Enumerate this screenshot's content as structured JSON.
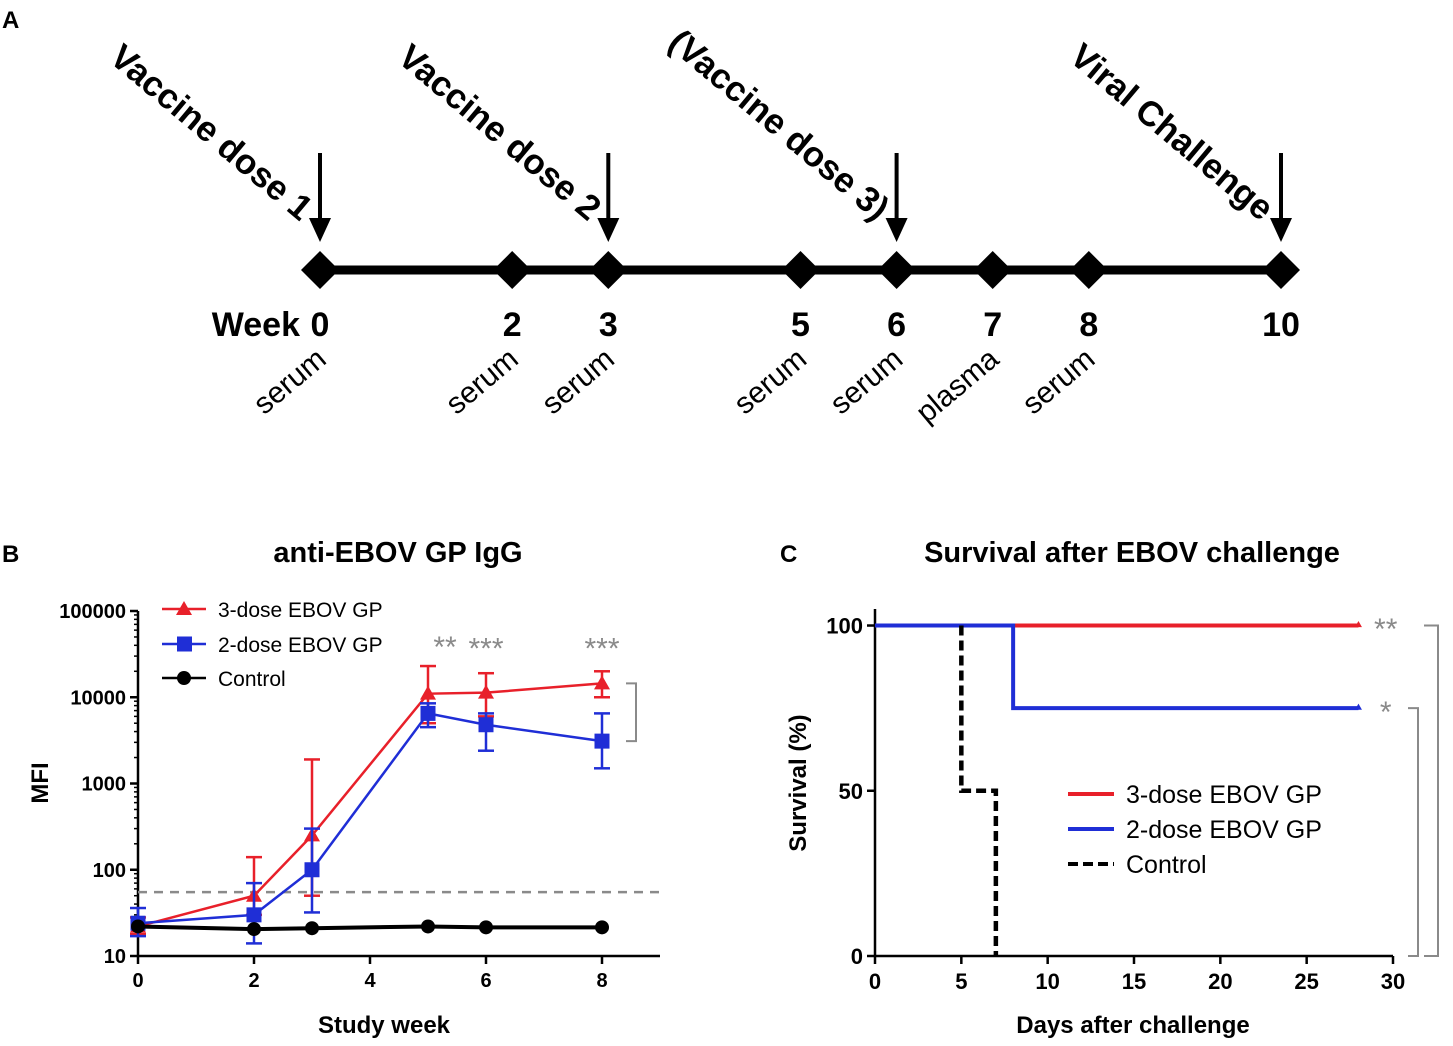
{
  "panels": {
    "a": "A",
    "b": "B",
    "c": "C"
  },
  "timeline": {
    "week_label": "Week",
    "weeks": [
      "0",
      "2",
      "3",
      "5",
      "6",
      "7",
      "8",
      "10"
    ],
    "week_values": [
      0,
      2,
      3,
      5,
      6,
      7,
      8,
      10
    ],
    "samples": [
      "serum",
      "serum",
      "serum",
      "serum",
      "serum",
      "plasma",
      "serum"
    ],
    "events": [
      {
        "label": "Vaccine dose 1",
        "week": 0
      },
      {
        "label": "Vaccine dose 2",
        "week": 3
      },
      {
        "label": "(Vaccine dose 3)",
        "week": 6
      },
      {
        "label": "Viral Challenge",
        "week": 10
      }
    ]
  },
  "chart_data": [
    {
      "type": "line",
      "title": "anti-EBOV GP IgG",
      "xlabel": "Study week",
      "ylabel": "MFI",
      "yscale": "log",
      "xlim": [
        0,
        9
      ],
      "ylim": [
        10,
        100000
      ],
      "xticks": [
        0,
        2,
        4,
        6,
        8
      ],
      "xtick_labels": [
        "0",
        "2",
        "4",
        "6",
        "8"
      ],
      "yticks": [
        10,
        100,
        1000,
        10000,
        100000
      ],
      "ytick_labels": [
        "10",
        "100",
        "1000",
        "10000",
        "100000"
      ],
      "threshold": 55,
      "legend_position": "top-left",
      "series": [
        {
          "name": "3-dose EBOV GP",
          "color": "#e8202a",
          "marker": "triangle",
          "x": [
            0,
            2,
            3,
            5,
            6,
            8
          ],
          "y": [
            22,
            50,
            250,
            11000,
            11300,
            14500
          ],
          "err_low": [
            18,
            30,
            50,
            5000,
            6000,
            10000
          ],
          "err_high": [
            28,
            140,
            1900,
            23000,
            19000,
            20000
          ]
        },
        {
          "name": "2-dose EBOV GP",
          "color": "#1f2ed6",
          "marker": "square",
          "x": [
            0,
            2,
            3,
            5,
            6,
            8
          ],
          "y": [
            24,
            30,
            100,
            6500,
            4800,
            3100
          ],
          "err_low": [
            17,
            14,
            32,
            4500,
            2400,
            1500
          ],
          "err_high": [
            36,
            70,
            300,
            8500,
            6500,
            6500
          ]
        },
        {
          "name": "Control",
          "color": "#000000",
          "marker": "circle",
          "x": [
            0,
            2,
            3,
            5,
            6,
            8
          ],
          "y": [
            22,
            20.5,
            21,
            22,
            21.5,
            21.5
          ],
          "err_low": null,
          "err_high": null
        }
      ],
      "annotations": [
        {
          "text": "**",
          "x": 5,
          "y": 45000
        },
        {
          "text": "***",
          "x": 6,
          "y": 43000
        },
        {
          "text": "***",
          "x": 8,
          "y": 43000
        }
      ],
      "bracket": {
        "from": 14500,
        "to": 3100
      }
    },
    {
      "type": "line",
      "title": "Survival after EBOV challenge",
      "xlabel": "Days after challenge",
      "ylabel": "Survival (%)",
      "xlim": [
        0,
        30
      ],
      "ylim": [
        0,
        105
      ],
      "xticks": [
        0,
        5,
        10,
        15,
        20,
        25,
        30
      ],
      "xtick_labels": [
        "0",
        "5",
        "10",
        "15",
        "20",
        "25",
        "30"
      ],
      "yticks": [
        0,
        50,
        100
      ],
      "ytick_labels": [
        "0",
        "50",
        "100"
      ],
      "legend_position": "center-right",
      "series": [
        {
          "name": "3-dose EBOV GP",
          "color": "#e8202a",
          "style": "solid",
          "x": [
            0,
            28
          ],
          "y": [
            100,
            100
          ]
        },
        {
          "name": "2-dose EBOV GP",
          "color": "#1f2ed6",
          "style": "solid",
          "x": [
            0,
            8,
            8,
            28
          ],
          "y": [
            100,
            100,
            75,
            75
          ]
        },
        {
          "name": "Control",
          "color": "#000000",
          "style": "dashed",
          "x": [
            5,
            5,
            7,
            7
          ],
          "y": [
            100,
            50,
            50,
            0
          ]
        }
      ],
      "annotations": [
        {
          "text": "**",
          "x": 29,
          "y": 101
        },
        {
          "text": "*",
          "x": 29,
          "y": 76
        }
      ]
    }
  ]
}
